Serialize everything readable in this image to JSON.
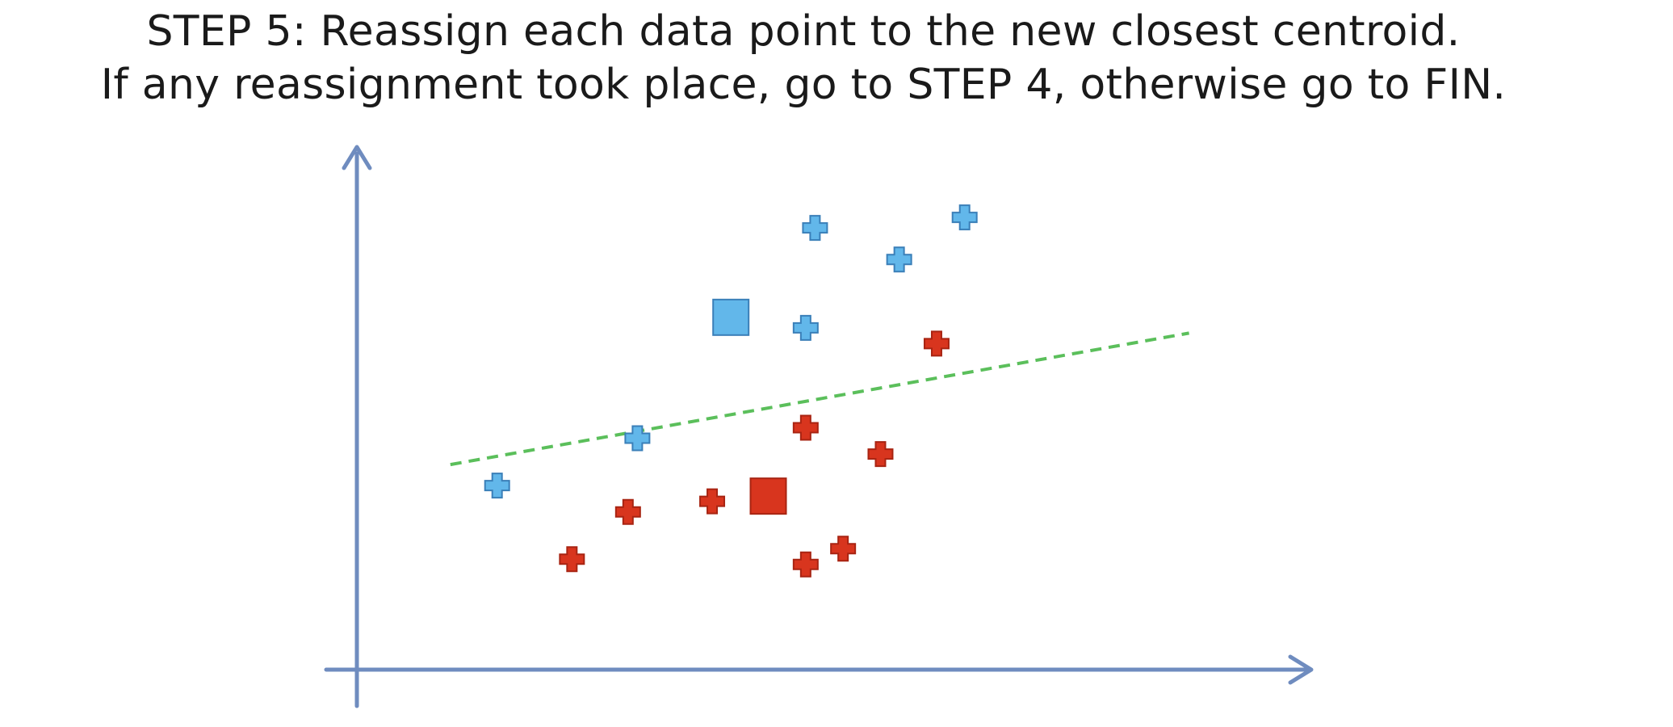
{
  "title": {
    "line1_step": "STEP 5",
    "line1_rest": ": Reassign each data point to the new closest centroid.",
    "line2": "If any reassignment took place, go to STEP 4, otherwise go to FIN."
  },
  "colors": {
    "axis": "#6f8cbf",
    "cluster_blue_fill": "#62b7ea",
    "cluster_blue_stroke": "#3a7fb8",
    "cluster_red_fill": "#d8351e",
    "cluster_red_stroke": "#a82412",
    "separator": "#5bbf5b"
  },
  "chart_data": {
    "type": "scatter",
    "title": "",
    "xlabel": "",
    "ylabel": "",
    "xlim": [
      0,
      100
    ],
    "ylim": [
      0,
      100
    ],
    "grid": false,
    "legend": "none",
    "series": [
      {
        "cluster": "blue",
        "points": [
          {
            "x": 15,
            "y": 35
          },
          {
            "x": 30,
            "y": 44
          },
          {
            "x": 48,
            "y": 65
          },
          {
            "x": 49,
            "y": 84
          },
          {
            "x": 58,
            "y": 78
          },
          {
            "x": 65,
            "y": 86
          }
        ]
      },
      {
        "cluster": "red",
        "points": [
          {
            "x": 23,
            "y": 21
          },
          {
            "x": 29,
            "y": 30
          },
          {
            "x": 38,
            "y": 32
          },
          {
            "x": 48,
            "y": 46
          },
          {
            "x": 48,
            "y": 20
          },
          {
            "x": 52,
            "y": 23
          },
          {
            "x": 56,
            "y": 41
          },
          {
            "x": 62,
            "y": 62
          }
        ]
      }
    ],
    "centroids": [
      {
        "cluster": "blue",
        "x": 40,
        "y": 67
      },
      {
        "cluster": "red",
        "x": 44,
        "y": 33
      }
    ],
    "separator": {
      "style": "dashed",
      "from": {
        "x": 10,
        "y": 39
      },
      "to": {
        "x": 89,
        "y": 64
      }
    }
  }
}
